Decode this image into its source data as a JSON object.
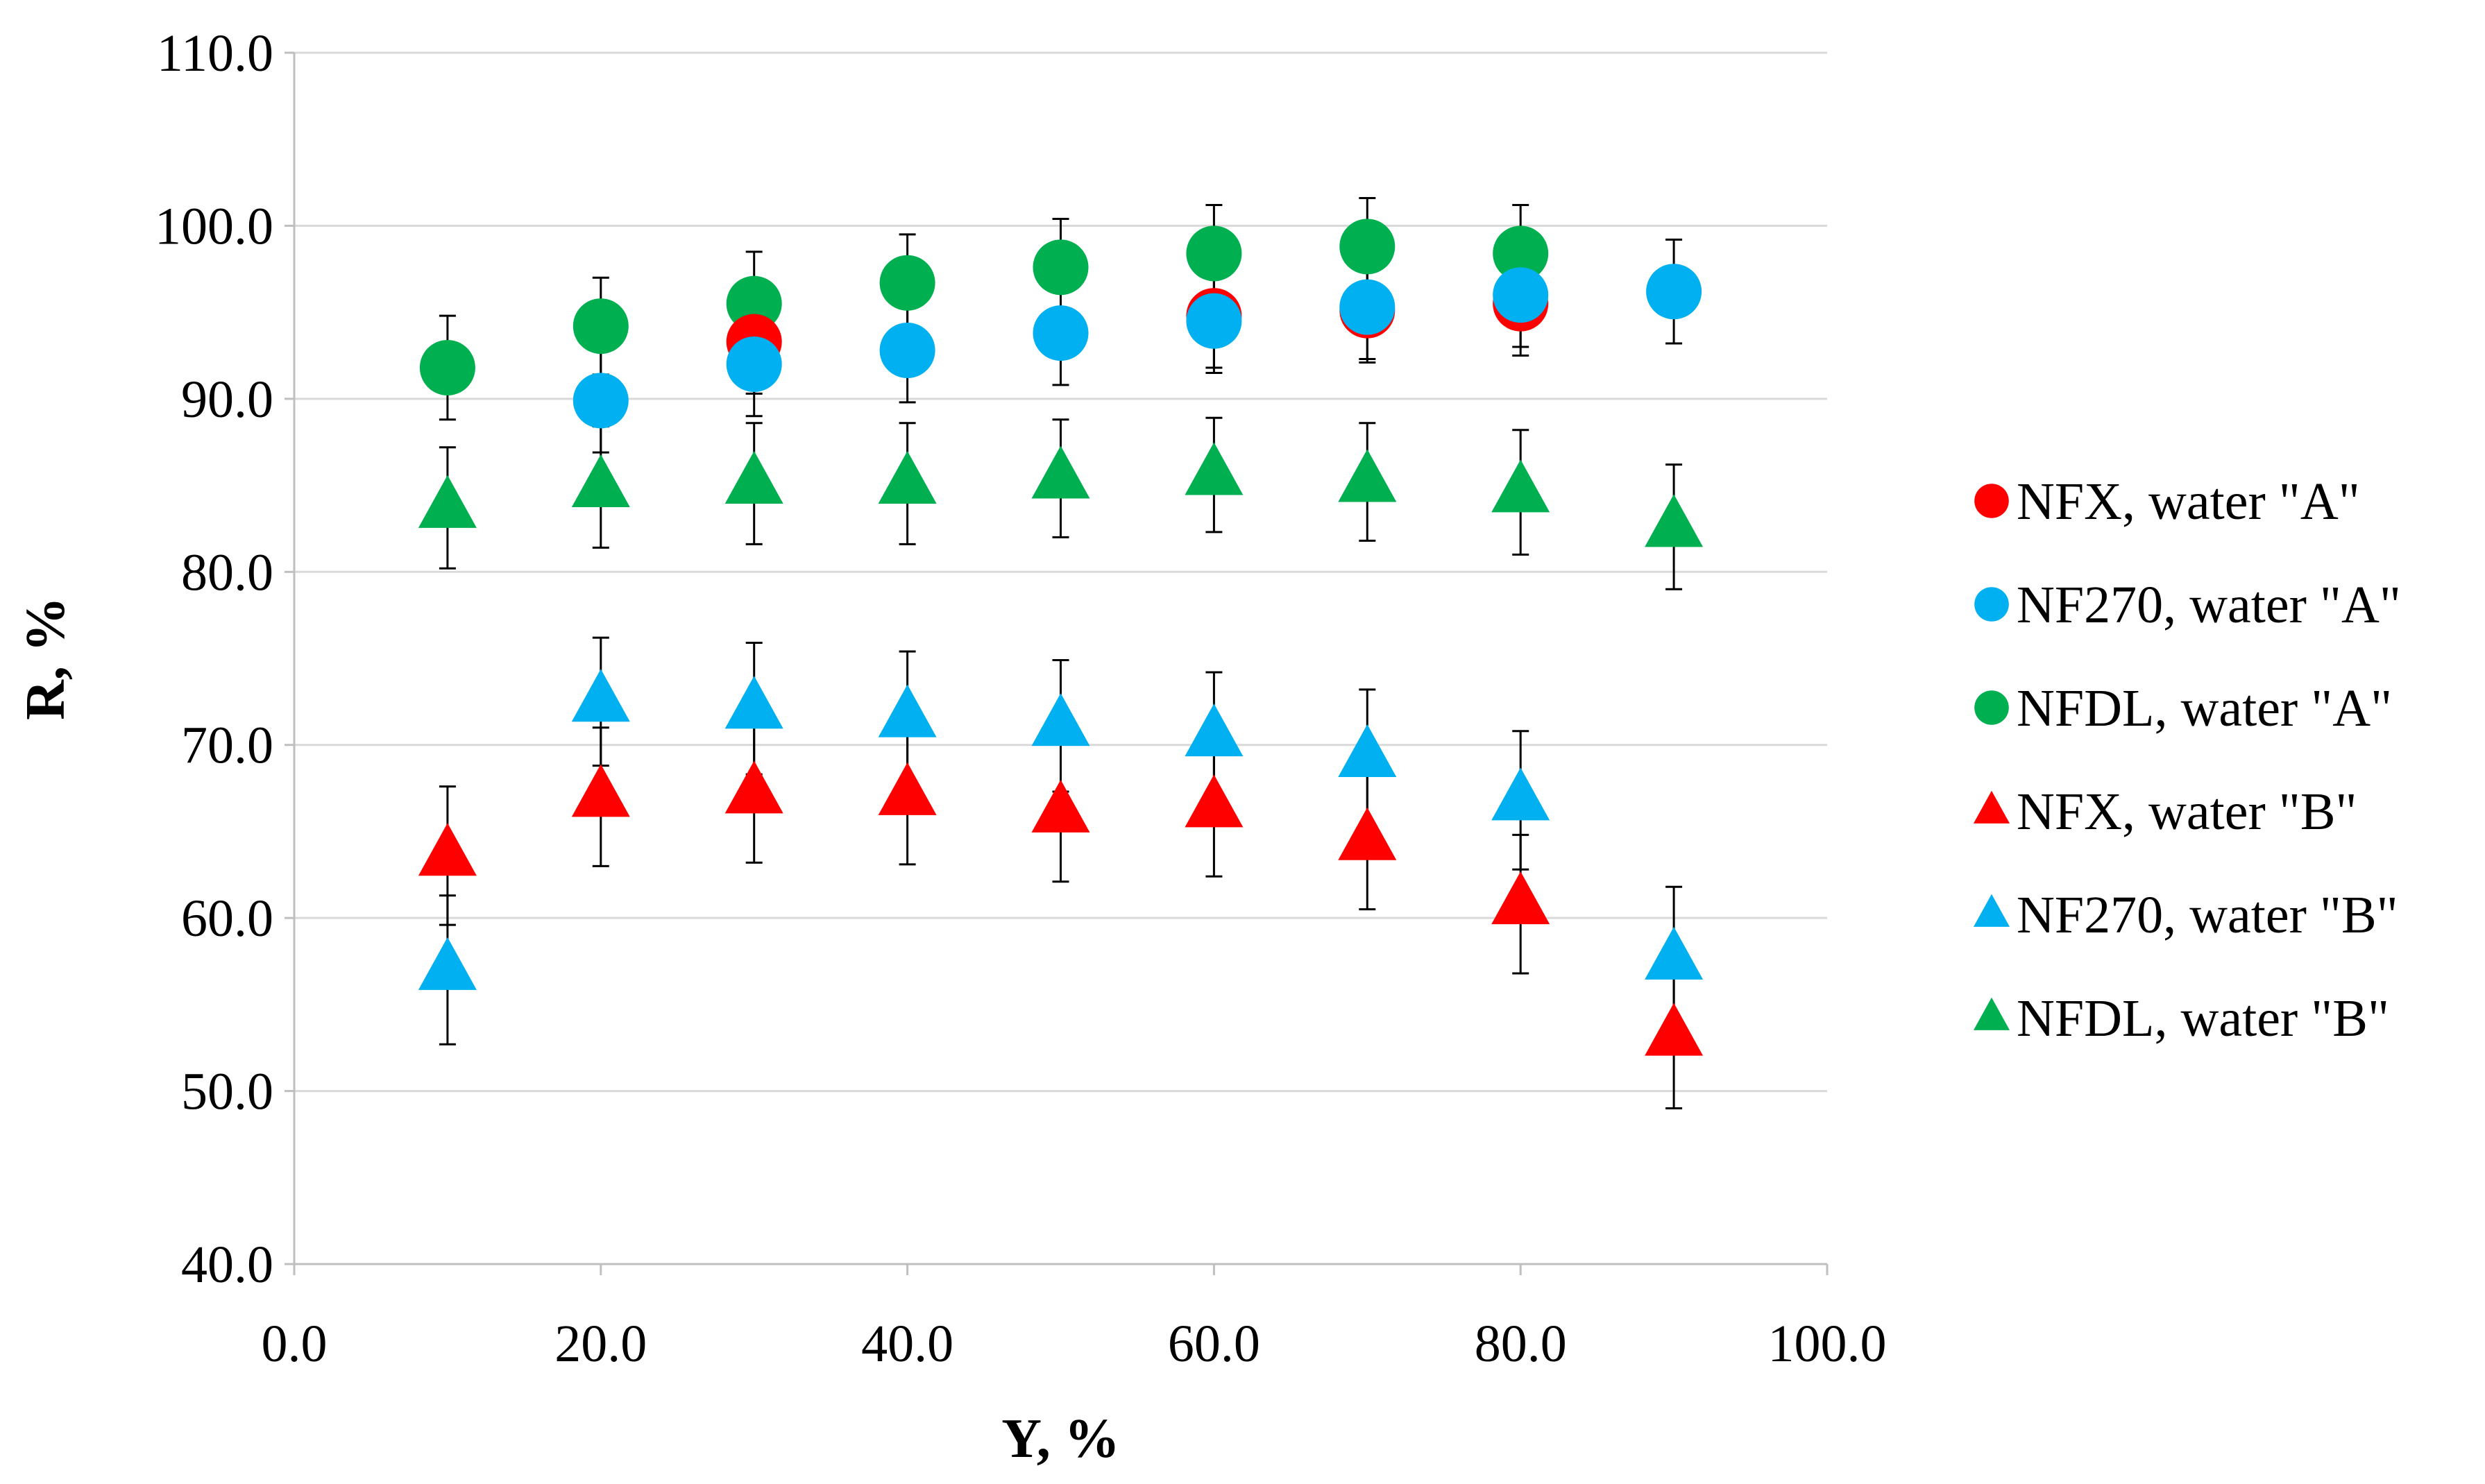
{
  "chart_data": {
    "type": "scatter",
    "title": "",
    "xlabel": "Y, %",
    "ylabel": "R, %",
    "xlim": [
      0,
      100
    ],
    "ylim": [
      40,
      110
    ],
    "x_ticks": [
      "0.0",
      "20.0",
      "40.0",
      "60.0",
      "80.0",
      "100.0"
    ],
    "y_ticks": [
      "40.0",
      "50.0",
      "60.0",
      "70.0",
      "80.0",
      "90.0",
      "100.0",
      "110.0"
    ],
    "grid": "horizontal",
    "legend_position": "right",
    "series": [
      {
        "name": "NFX, water \"A\"",
        "marker": "circle",
        "color": "#ff0000",
        "x": [
          30,
          60,
          70,
          80
        ],
        "y": [
          93.3,
          94.8,
          95.1,
          95.5
        ],
        "err": [
          3.0,
          3.0,
          3.0,
          3.0
        ]
      },
      {
        "name": "NF270, water \"A\"",
        "marker": "circle",
        "color": "#00b0f0",
        "x": [
          20,
          30,
          40,
          50,
          60,
          70,
          80,
          90
        ],
        "y": [
          89.9,
          92.0,
          92.8,
          93.8,
          94.5,
          95.3,
          96.0,
          96.2
        ],
        "err": [
          3.0,
          3.0,
          3.0,
          3.0,
          3.0,
          3.0,
          3.0,
          3.0
        ]
      },
      {
        "name": "NFDL, water \"A\"",
        "marker": "circle",
        "color": "#00b050",
        "x": [
          10,
          20,
          30,
          40,
          50,
          60,
          70,
          80
        ],
        "y": [
          91.8,
          94.2,
          95.5,
          96.7,
          97.6,
          98.4,
          98.8,
          98.4
        ],
        "err": [
          3.0,
          2.8,
          3.0,
          2.8,
          2.8,
          2.8,
          2.8,
          2.8
        ]
      },
      {
        "name": "NFX, water \"B\"",
        "marker": "triangle",
        "color": "#ff0000",
        "x": [
          10,
          20,
          30,
          40,
          50,
          60,
          70,
          80,
          90
        ],
        "y": [
          63.6,
          67.0,
          67.2,
          67.1,
          66.1,
          66.4,
          64.5,
          60.8,
          53.2
        ],
        "err": [
          4.0,
          4.0,
          4.0,
          4.0,
          4.0,
          4.0,
          4.0,
          4.0,
          4.2
        ]
      },
      {
        "name": "NF270, water \"B\"",
        "marker": "triangle",
        "color": "#00b0f0",
        "x": [
          10,
          20,
          30,
          40,
          50,
          60,
          70,
          80,
          90
        ],
        "y": [
          57.0,
          72.5,
          72.1,
          71.6,
          71.1,
          70.5,
          69.3,
          66.8,
          57.6
        ],
        "err": [
          4.3,
          3.7,
          3.8,
          3.8,
          3.8,
          3.7,
          3.9,
          4.0,
          4.2
        ]
      },
      {
        "name": "NFDL, water \"B\"",
        "marker": "triangle",
        "color": "#00b050",
        "x": [
          10,
          20,
          30,
          40,
          50,
          60,
          70,
          80,
          90
        ],
        "y": [
          83.7,
          84.9,
          85.1,
          85.1,
          85.4,
          85.6,
          85.2,
          84.6,
          82.6
        ],
        "err": [
          3.5,
          3.5,
          3.5,
          3.5,
          3.4,
          3.3,
          3.4,
          3.6,
          3.6
        ]
      }
    ]
  }
}
